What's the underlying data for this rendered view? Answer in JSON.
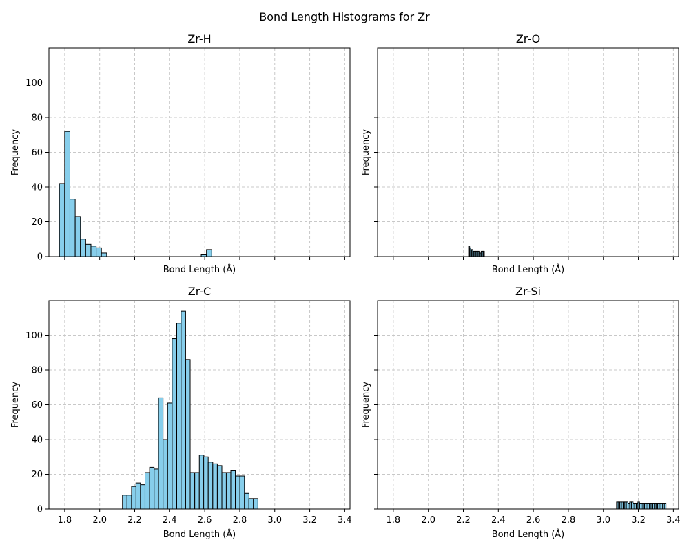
{
  "chart_data": {
    "type": "bar",
    "title": "Bond Length Histograms for Zr",
    "grid": true,
    "colors": {
      "bar_fill": "#87ceeb",
      "bar_edge": "#000000",
      "grid": "#c8c8c8"
    },
    "shared_xlim": [
      1.71,
      3.43
    ],
    "shared_ylim": [
      0,
      120
    ],
    "x_ticks": [
      1.8,
      2.0,
      2.2,
      2.4,
      2.6,
      2.8,
      3.0,
      3.2,
      3.4
    ],
    "x_tick_labels": [
      "1.8",
      "2.0",
      "2.2",
      "2.4",
      "2.6",
      "2.8",
      "3.0",
      "3.2",
      "3.4"
    ],
    "y_ticks": [
      0,
      20,
      40,
      60,
      80,
      100
    ],
    "y_tick_labels": [
      "0",
      "20",
      "40",
      "60",
      "80",
      "100"
    ],
    "xlabel": "Bond Length (Å)",
    "ylabel": "Frequency",
    "panels": [
      {
        "title": "Zr-H",
        "bin_width": 0.03,
        "bins": [
          {
            "x": 1.785,
            "count": 42
          },
          {
            "x": 1.815,
            "count": 72
          },
          {
            "x": 1.845,
            "count": 33
          },
          {
            "x": 1.875,
            "count": 23
          },
          {
            "x": 1.905,
            "count": 10
          },
          {
            "x": 1.935,
            "count": 7
          },
          {
            "x": 1.965,
            "count": 6
          },
          {
            "x": 1.995,
            "count": 5
          },
          {
            "x": 2.025,
            "count": 2
          },
          {
            "x": 2.055,
            "count": 0
          },
          {
            "x": 2.085,
            "count": 0
          },
          {
            "x": 2.115,
            "count": 0
          },
          {
            "x": 2.145,
            "count": 0
          },
          {
            "x": 2.175,
            "count": 0
          },
          {
            "x": 2.205,
            "count": 0
          },
          {
            "x": 2.235,
            "count": 0
          },
          {
            "x": 2.265,
            "count": 0
          },
          {
            "x": 2.295,
            "count": 0
          },
          {
            "x": 2.325,
            "count": 0
          },
          {
            "x": 2.355,
            "count": 0
          },
          {
            "x": 2.385,
            "count": 0
          },
          {
            "x": 2.415,
            "count": 0
          },
          {
            "x": 2.445,
            "count": 0
          },
          {
            "x": 2.475,
            "count": 0
          },
          {
            "x": 2.505,
            "count": 0
          },
          {
            "x": 2.535,
            "count": 0
          },
          {
            "x": 2.565,
            "count": 0
          },
          {
            "x": 2.595,
            "count": 1
          },
          {
            "x": 2.625,
            "count": 4
          }
        ]
      },
      {
        "title": "Zr-O",
        "bin_width": 0.006,
        "bins": [
          {
            "x": 2.233,
            "count": 6
          },
          {
            "x": 2.239,
            "count": 5
          },
          {
            "x": 2.245,
            "count": 4
          },
          {
            "x": 2.251,
            "count": 4
          },
          {
            "x": 2.257,
            "count": 3
          },
          {
            "x": 2.263,
            "count": 3
          },
          {
            "x": 2.269,
            "count": 3
          },
          {
            "x": 2.275,
            "count": 3
          },
          {
            "x": 2.281,
            "count": 3
          },
          {
            "x": 2.287,
            "count": 3
          },
          {
            "x": 2.293,
            "count": 2
          },
          {
            "x": 2.299,
            "count": 2
          },
          {
            "x": 2.305,
            "count": 3
          },
          {
            "x": 2.311,
            "count": 3
          },
          {
            "x": 2.317,
            "count": 3
          }
        ]
      },
      {
        "title": "Zr-C",
        "bin_width": 0.0258,
        "bins": [
          {
            "x": 2.143,
            "count": 8
          },
          {
            "x": 2.169,
            "count": 8
          },
          {
            "x": 2.195,
            "count": 13
          },
          {
            "x": 2.22,
            "count": 15
          },
          {
            "x": 2.246,
            "count": 14
          },
          {
            "x": 2.272,
            "count": 21
          },
          {
            "x": 2.298,
            "count": 24
          },
          {
            "x": 2.324,
            "count": 23
          },
          {
            "x": 2.349,
            "count": 64
          },
          {
            "x": 2.375,
            "count": 40
          },
          {
            "x": 2.401,
            "count": 61
          },
          {
            "x": 2.427,
            "count": 98
          },
          {
            "x": 2.453,
            "count": 107
          },
          {
            "x": 2.478,
            "count": 114
          },
          {
            "x": 2.504,
            "count": 86
          },
          {
            "x": 2.53,
            "count": 21
          },
          {
            "x": 2.556,
            "count": 21
          },
          {
            "x": 2.582,
            "count": 31
          },
          {
            "x": 2.607,
            "count": 30
          },
          {
            "x": 2.633,
            "count": 27
          },
          {
            "x": 2.659,
            "count": 26
          },
          {
            "x": 2.685,
            "count": 25
          },
          {
            "x": 2.711,
            "count": 21
          },
          {
            "x": 2.736,
            "count": 21
          },
          {
            "x": 2.762,
            "count": 22
          },
          {
            "x": 2.788,
            "count": 19
          },
          {
            "x": 2.814,
            "count": 19
          },
          {
            "x": 2.84,
            "count": 9
          },
          {
            "x": 2.865,
            "count": 6
          },
          {
            "x": 2.891,
            "count": 6
          }
        ]
      },
      {
        "title": "Zr-Si",
        "bin_width": 0.0094,
        "bins": [
          {
            "x": 3.08,
            "count": 4
          },
          {
            "x": 3.089,
            "count": 4
          },
          {
            "x": 3.099,
            "count": 4
          },
          {
            "x": 3.108,
            "count": 4
          },
          {
            "x": 3.118,
            "count": 4
          },
          {
            "x": 3.127,
            "count": 4
          },
          {
            "x": 3.136,
            "count": 4
          },
          {
            "x": 3.146,
            "count": 3
          },
          {
            "x": 3.155,
            "count": 4
          },
          {
            "x": 3.165,
            "count": 4
          },
          {
            "x": 3.174,
            "count": 3
          },
          {
            "x": 3.183,
            "count": 3
          },
          {
            "x": 3.193,
            "count": 3
          },
          {
            "x": 3.202,
            "count": 4
          },
          {
            "x": 3.212,
            "count": 3
          },
          {
            "x": 3.221,
            "count": 3
          },
          {
            "x": 3.23,
            "count": 3
          },
          {
            "x": 3.24,
            "count": 3
          },
          {
            "x": 3.249,
            "count": 3
          },
          {
            "x": 3.259,
            "count": 3
          },
          {
            "x": 3.268,
            "count": 3
          },
          {
            "x": 3.277,
            "count": 3
          },
          {
            "x": 3.287,
            "count": 3
          },
          {
            "x": 3.296,
            "count": 3
          },
          {
            "x": 3.306,
            "count": 3
          },
          {
            "x": 3.315,
            "count": 3
          },
          {
            "x": 3.324,
            "count": 3
          },
          {
            "x": 3.334,
            "count": 3
          },
          {
            "x": 3.343,
            "count": 3
          },
          {
            "x": 3.353,
            "count": 3
          }
        ]
      }
    ]
  }
}
